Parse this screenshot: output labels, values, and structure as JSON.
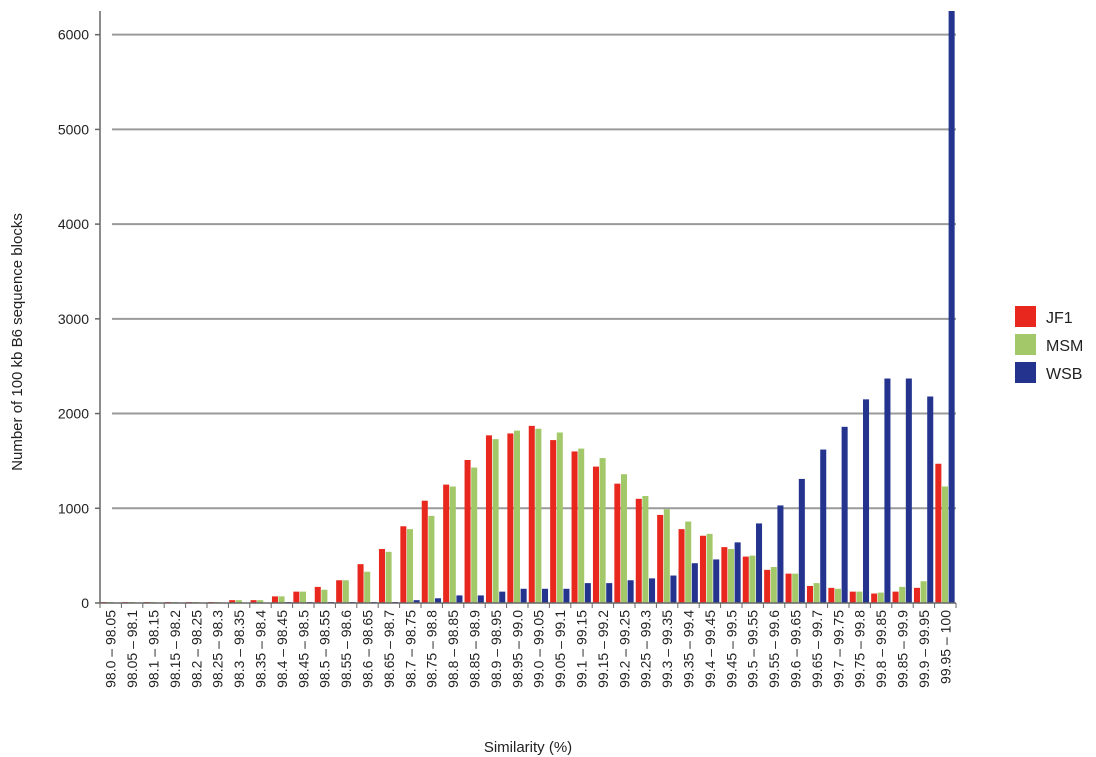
{
  "chart_data": {
    "type": "bar",
    "xlabel": "Similarity (%)",
    "ylabel": "Number of 100 kb B6 sequence blocks",
    "ylim": [
      0,
      6250
    ],
    "yticks": [
      0,
      1000,
      2000,
      3000,
      4000,
      5000,
      6000
    ],
    "grid": "horizontal",
    "legend_position": "right",
    "categories": [
      "98.0 – 98.05",
      "98.05 – 98.1",
      "98.1 – 98.15",
      "98.15 – 98.2",
      "98.2 – 98.25",
      "98.25 – 98.3",
      "98.3 – 98.35",
      "98.35 – 98.4",
      "98.4 – 98.45",
      "98.45 – 98.5",
      "98.5 – 98.55",
      "98.55 – 98.6",
      "98.6 – 98.65",
      "98.65 – 98.7",
      "98.7 – 98.75",
      "98.75 – 98.8",
      "98.8 – 98.85",
      "98.85 – 98.9",
      "98.9 – 98.95",
      "98.95 – 99.0",
      "99.0 – 99.05",
      "99.05 – 99.1",
      "99.1 – 99.15",
      "99.15 – 99.2",
      "99.2 – 99.25",
      "99.25 – 99.3",
      "99.3 – 99.35",
      "99.35 – 99.4",
      "99.4 – 99.45",
      "99.45 – 99.5",
      "99.5 – 99.55",
      "99.55 – 99.6",
      "99.6 – 99.65",
      "99.65 – 99.7",
      "99.7 – 99.75",
      "99.75 – 99.8",
      "99.8 – 99.85",
      "99.85 – 99.9",
      "99.9 – 99.95",
      "99.95 – 100"
    ],
    "series": [
      {
        "name": "JF1",
        "color": "#e8281e",
        "values": [
          10,
          10,
          10,
          10,
          10,
          10,
          30,
          30,
          70,
          120,
          170,
          240,
          410,
          570,
          810,
          1080,
          1250,
          1510,
          1770,
          1790,
          1870,
          1720,
          1600,
          1440,
          1260,
          1100,
          930,
          780,
          710,
          590,
          490,
          350,
          310,
          180,
          160,
          120,
          100,
          120,
          160,
          1470
        ]
      },
      {
        "name": "MSM",
        "color": "#a2c86a",
        "values": [
          10,
          10,
          10,
          10,
          10,
          10,
          30,
          30,
          70,
          120,
          140,
          240,
          330,
          540,
          780,
          920,
          1230,
          1430,
          1730,
          1820,
          1840,
          1800,
          1630,
          1530,
          1360,
          1130,
          990,
          860,
          730,
          570,
          500,
          380,
          310,
          210,
          150,
          120,
          110,
          170,
          230,
          1230
        ]
      },
      {
        "name": "WSB",
        "color": "#23338e",
        "values": [
          0,
          0,
          0,
          0,
          0,
          0,
          0,
          0,
          10,
          10,
          10,
          10,
          10,
          10,
          30,
          50,
          80,
          80,
          120,
          150,
          150,
          150,
          210,
          210,
          240,
          260,
          290,
          420,
          460,
          640,
          840,
          1030,
          1310,
          1620,
          1860,
          2150,
          2370,
          2370,
          2180,
          6250
        ]
      }
    ]
  }
}
